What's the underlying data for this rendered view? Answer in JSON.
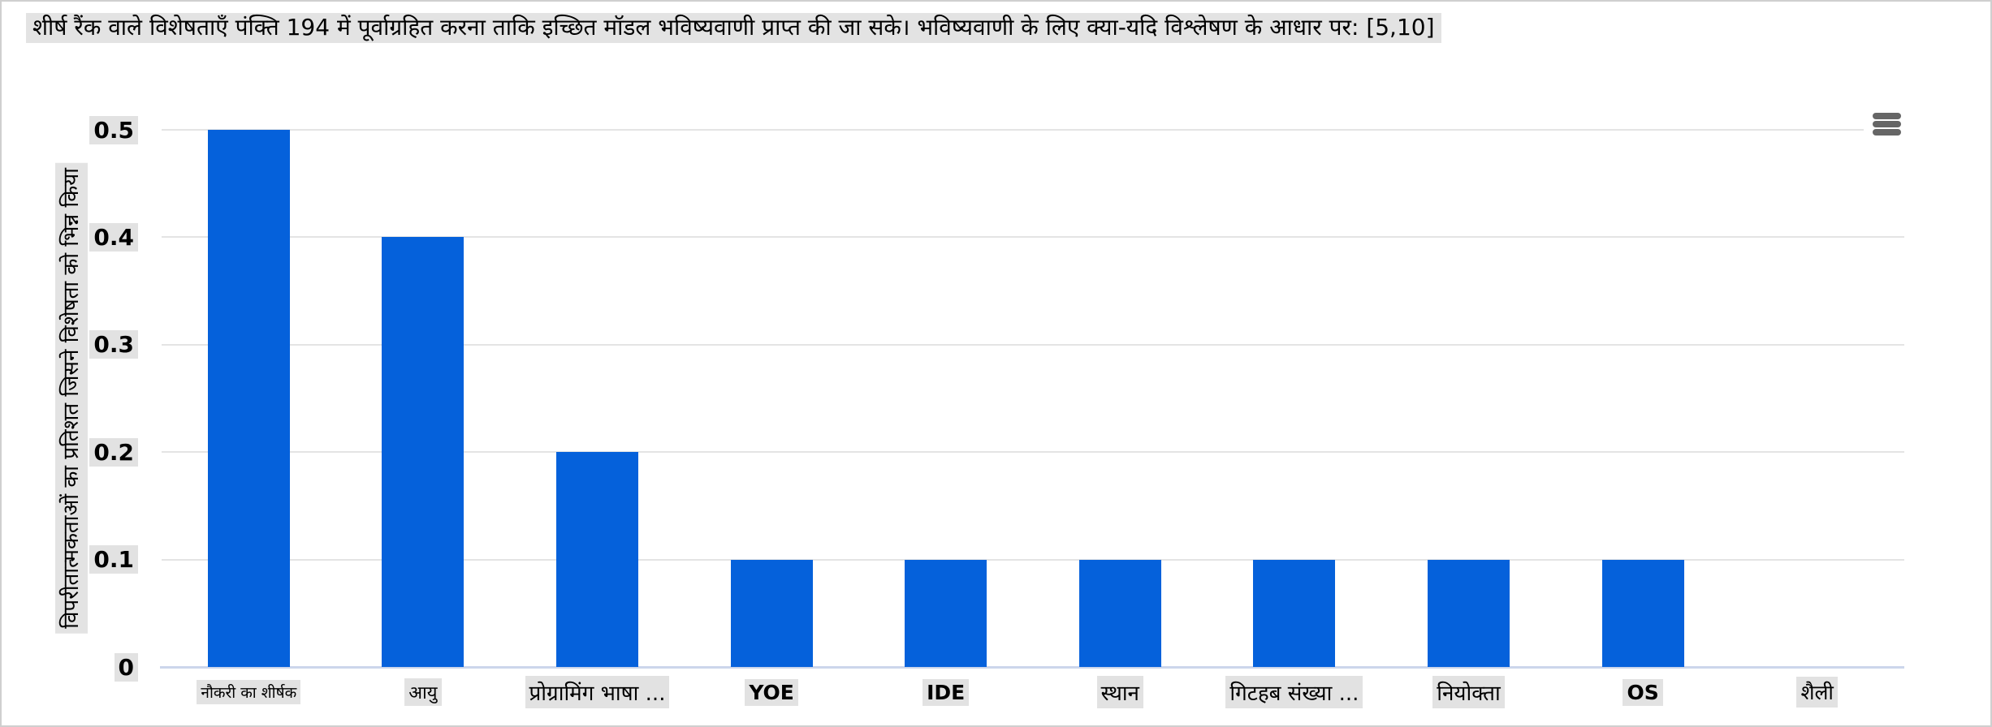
{
  "chart_data": {
    "type": "bar",
    "title": "शीर्ष रैंक वाले विशेषताएँ पंक्ति 194 में पूर्वाग्रहित करना ताकि इच्छित मॉडल भविष्यवाणी प्राप्त की जा सके। भविष्यवाणी के लिए क्या-यदि विश्लेषण के आधार पर: [5,10]",
    "categories": [
      "नौकरी का शीर्षक",
      "आयु",
      "प्रोग्रामिंग भाषा ...",
      "YOE",
      "IDE",
      "स्थान",
      "गिटहब संख्या ...",
      "नियोक्ता",
      "OS",
      "शैली"
    ],
    "values": [
      0.5,
      0.4,
      0.2,
      0.1,
      0.1,
      0.1,
      0.1,
      0.1,
      0.1,
      0
    ],
    "xlabel": "",
    "ylabel": "विपरीतात्मकताओं का प्रतिशत जिसने विशेषता को भिन्न किया",
    "ylim": [
      0,
      0.5
    ],
    "yticks": [
      "0",
      "0.1",
      "0.2",
      "0.3",
      "0.4",
      "0.5"
    ],
    "grid": true,
    "legend": false,
    "bar_color": "#0561db"
  },
  "toolbar": {
    "menu_icon": "hamburger-menu"
  },
  "colors": {
    "bar": "#0561db",
    "gridline": "#e4e4e4",
    "axis_line": "#ccd6eb",
    "text_highlight": "#e2e2e2",
    "menu_icon": "#666666",
    "border": "#cfcfcf",
    "background": "#ffffff",
    "text": "#000000"
  }
}
